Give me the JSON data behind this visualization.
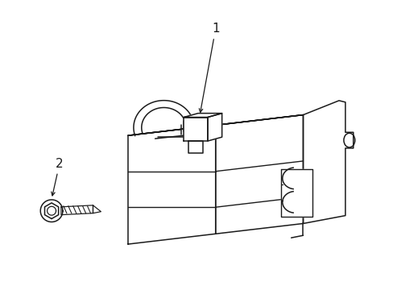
{
  "background_color": "#ffffff",
  "line_color": "#1a1a1a",
  "line_width": 1.1,
  "label_1": "1",
  "label_2": "2",
  "fig_width": 4.89,
  "fig_height": 3.6,
  "dpi": 100
}
